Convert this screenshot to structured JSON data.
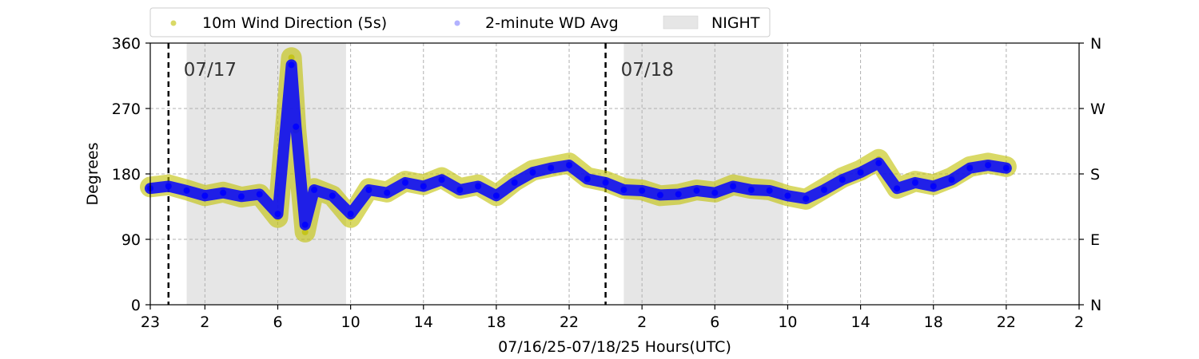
{
  "chart_data": {
    "type": "scatter",
    "xlabel": "07/16/25-07/18/25  Hours(UTC)",
    "ylabel": "Degrees",
    "xlim": [
      "07/16 23:00",
      "07/19 02:00"
    ],
    "ylim": [
      0,
      360
    ],
    "x_ticks": [
      "23",
      "2",
      "6",
      "10",
      "14",
      "18",
      "22",
      "2",
      "6",
      "10",
      "14",
      "18",
      "22",
      "2"
    ],
    "x_tick_times": [
      "07/16 23:00",
      "07/17 02:00",
      "07/17 06:00",
      "07/17 10:00",
      "07/17 14:00",
      "07/17 18:00",
      "07/17 22:00",
      "07/18 02:00",
      "07/18 06:00",
      "07/18 10:00",
      "07/18 14:00",
      "07/18 18:00",
      "07/18 22:00",
      "07/19 02:00"
    ],
    "y_ticks": [
      0,
      90,
      180,
      270,
      360
    ],
    "y_ticks_right": [
      {
        "value": 0,
        "label": "N"
      },
      {
        "value": 90,
        "label": "E"
      },
      {
        "value": 180,
        "label": "S"
      },
      {
        "value": 270,
        "label": "W"
      },
      {
        "value": 360,
        "label": "N"
      }
    ],
    "grid": true,
    "legend_position": "top",
    "day_markers": [
      {
        "time": "07/17 00:00",
        "label": "07/17"
      },
      {
        "time": "07/18 00:00",
        "label": "07/18"
      }
    ],
    "night_periods": [
      {
        "start": "07/17 01:00",
        "end": "07/17 09:45"
      },
      {
        "start": "07/18 01:00",
        "end": "07/18 09:45"
      }
    ],
    "series": [
      {
        "name": "10m Wind Direction (5s)",
        "color": "#bfbf00",
        "marker": "circle",
        "x": [
          "07/16 23:00",
          "07/17 00:00",
          "07/17 01:00",
          "07/17 02:00",
          "07/17 03:00",
          "07/17 04:00",
          "07/17 05:00",
          "07/17 06:00",
          "07/17 06:45",
          "07/17 07:00",
          "07/17 07:30",
          "07/17 08:00",
          "07/17 09:00",
          "07/17 10:00",
          "07/17 11:00",
          "07/17 12:00",
          "07/17 13:00",
          "07/17 14:00",
          "07/17 15:00",
          "07/17 16:00",
          "07/17 17:00",
          "07/17 18:00",
          "07/17 19:00",
          "07/17 20:00",
          "07/17 21:00",
          "07/17 22:00",
          "07/17 23:00",
          "07/18 00:00",
          "07/18 01:00",
          "07/18 02:00",
          "07/18 03:00",
          "07/18 04:00",
          "07/18 05:00",
          "07/18 06:00",
          "07/18 07:00",
          "07/18 08:00",
          "07/18 09:00",
          "07/18 10:00",
          "07/18 11:00",
          "07/18 12:00",
          "07/18 13:00",
          "07/18 14:00",
          "07/18 15:00",
          "07/18 16:00",
          "07/18 17:00",
          "07/18 18:00",
          "07/18 19:00",
          "07/18 20:00",
          "07/18 21:00",
          "07/18 22:00"
        ],
        "values": [
          162,
          165,
          158,
          150,
          155,
          148,
          152,
          120,
          340,
          240,
          100,
          160,
          150,
          120,
          160,
          155,
          170,
          165,
          175,
          160,
          165,
          150,
          170,
          185,
          190,
          195,
          175,
          170,
          160,
          158,
          150,
          152,
          158,
          155,
          165,
          160,
          158,
          150,
          145,
          160,
          175,
          185,
          200,
          160,
          170,
          165,
          175,
          190,
          195,
          190
        ]
      },
      {
        "name": "2-minute WD Avg",
        "color": "#0000ff",
        "marker": "circle",
        "x": [
          "07/16 23:00",
          "07/17 00:00",
          "07/17 01:00",
          "07/17 02:00",
          "07/17 03:00",
          "07/17 04:00",
          "07/17 05:00",
          "07/17 06:00",
          "07/17 06:45",
          "07/17 07:00",
          "07/17 07:30",
          "07/17 08:00",
          "07/17 09:00",
          "07/17 10:00",
          "07/17 11:00",
          "07/17 12:00",
          "07/17 13:00",
          "07/17 14:00",
          "07/17 15:00",
          "07/17 16:00",
          "07/17 17:00",
          "07/17 18:00",
          "07/17 19:00",
          "07/17 20:00",
          "07/17 21:00",
          "07/17 22:00",
          "07/17 23:00",
          "07/18 00:00",
          "07/18 01:00",
          "07/18 02:00",
          "07/18 03:00",
          "07/18 04:00",
          "07/18 05:00",
          "07/18 06:00",
          "07/18 07:00",
          "07/18 08:00",
          "07/18 09:00",
          "07/18 10:00",
          "07/18 11:00",
          "07/18 12:00",
          "07/18 13:00",
          "07/18 14:00",
          "07/18 15:00",
          "07/18 16:00",
          "07/18 17:00",
          "07/18 18:00",
          "07/18 19:00",
          "07/18 20:00",
          "07/18 21:00",
          "07/18 22:00"
        ],
        "values": [
          160,
          163,
          157,
          150,
          154,
          149,
          152,
          125,
          330,
          245,
          110,
          158,
          150,
          125,
          158,
          154,
          168,
          163,
          172,
          158,
          163,
          150,
          168,
          182,
          188,
          192,
          173,
          168,
          158,
          157,
          151,
          152,
          157,
          154,
          163,
          158,
          157,
          150,
          146,
          158,
          172,
          182,
          195,
          160,
          168,
          163,
          172,
          188,
          192,
          188
        ]
      }
    ]
  },
  "legend": {
    "items": [
      {
        "label": "10m Wind Direction (5s)",
        "color": "#bfbf00"
      },
      {
        "label": "2-minute WD Avg",
        "color": "#0000ff"
      },
      {
        "label": "NIGHT",
        "color": "#e6e6e6"
      }
    ]
  }
}
